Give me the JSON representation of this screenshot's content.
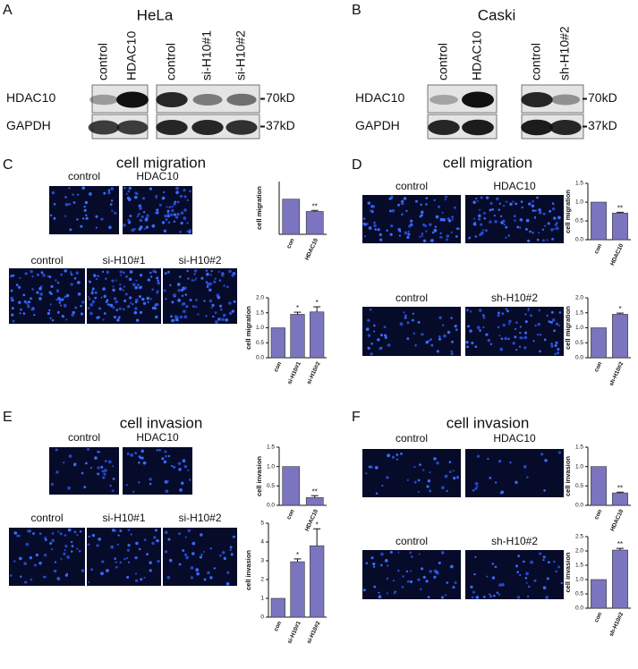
{
  "panels": {
    "A": {
      "label": "A",
      "title": "HeLa",
      "lanes": [
        [
          "control",
          "HDAC10"
        ],
        [
          "control",
          "si-H10#1",
          "si-H10#2"
        ]
      ],
      "rows": [
        "HDAC10",
        "GAPDH"
      ],
      "markers": [
        "70kD",
        "37kD"
      ]
    },
    "B": {
      "label": "B",
      "title": "Caski",
      "lanes": [
        [
          "control",
          "HDAC10"
        ],
        [
          "control",
          "sh-H10#2"
        ]
      ],
      "rows": [
        "HDAC10",
        "GAPDH"
      ],
      "markers": [
        "70kD",
        "37kD"
      ]
    },
    "C": {
      "label": "C",
      "title": "cell migration",
      "images": [
        [
          "control",
          "HDAC10"
        ],
        [
          "control",
          "si-H10#1",
          "si-H10#2"
        ]
      ]
    },
    "D": {
      "label": "D",
      "title": "cell migration",
      "images": [
        [
          "control",
          "HDAC10"
        ],
        [
          "control",
          "sh-H10#2"
        ]
      ]
    },
    "E": {
      "label": "E",
      "title": "cell invasion",
      "images": [
        [
          "control",
          "HDAC10"
        ],
        [
          "control",
          "si-H10#1",
          "si-H10#2"
        ]
      ]
    },
    "F": {
      "label": "F",
      "title": "cell invasion",
      "images": [
        [
          "control",
          "HDAC10"
        ],
        [
          "control",
          "sh-H10#2"
        ]
      ]
    }
  },
  "chart_data": [
    {
      "type": "bar",
      "ylabel": "cell migration",
      "categories": [
        "con",
        "HDAC10"
      ],
      "values": [
        1.0,
        0.65
      ],
      "errors": [
        null,
        0.03
      ],
      "significance": [
        null,
        "**"
      ],
      "color": "#7b74be",
      "ylim": [
        0,
        1.5
      ]
    },
    {
      "type": "bar",
      "ylabel": "cell migration",
      "categories": [
        "con",
        "si-H10#1",
        "si-H10#2"
      ],
      "values": [
        1.0,
        1.45,
        1.53
      ],
      "errors": [
        null,
        0.07,
        0.17
      ],
      "significance": [
        null,
        "*",
        "*"
      ],
      "color": "#7b74be",
      "ylim": [
        0,
        2.0
      ],
      "yticks": [
        {
          "value": 0,
          "label": "0.0"
        },
        {
          "value": 0.5,
          "label": "0.5"
        },
        {
          "value": 1,
          "label": "1.0"
        },
        {
          "value": 1.5,
          "label": "1.5"
        },
        {
          "value": 2,
          "label": "2.0"
        }
      ]
    },
    {
      "type": "bar",
      "ylabel": "cell migration",
      "categories": [
        "con",
        "HDAC10"
      ],
      "values": [
        1.0,
        0.71
      ],
      "errors": [
        null,
        0.02
      ],
      "significance": [
        null,
        "**"
      ],
      "color": "#7b74be",
      "ylim": [
        0,
        1.5
      ],
      "yticks": [
        {
          "value": 0,
          "label": "0.0"
        },
        {
          "value": 0.5,
          "label": "0.5"
        },
        {
          "value": 1,
          "label": "1.0"
        },
        {
          "value": 1.5,
          "label": "1.5"
        }
      ]
    },
    {
      "type": "bar",
      "ylabel": "cell migration",
      "categories": [
        "con",
        "sh-H10#2"
      ],
      "values": [
        1.0,
        1.45
      ],
      "errors": [
        null,
        0.04
      ],
      "significance": [
        null,
        "*"
      ],
      "color": "#7b74be",
      "ylim": [
        0,
        2.0
      ],
      "yticks": [
        {
          "value": 0,
          "label": "0.0"
        },
        {
          "value": 0.5,
          "label": "0.5"
        },
        {
          "value": 1,
          "label": "1.0"
        },
        {
          "value": 1.5,
          "label": "1.5"
        },
        {
          "value": 2,
          "label": "2.0"
        }
      ]
    },
    {
      "type": "bar",
      "ylabel": "cell invasion",
      "categories": [
        "con",
        "HDAC10"
      ],
      "values": [
        1.0,
        0.2
      ],
      "errors": [
        null,
        0.05
      ],
      "significance": [
        null,
        "**"
      ],
      "color": "#7b74be",
      "ylim": [
        0,
        1.5
      ],
      "yticks": [
        {
          "value": 0,
          "label": "0.0"
        },
        {
          "value": 0.5,
          "label": "0.5"
        },
        {
          "value": 1,
          "label": "1.0"
        },
        {
          "value": 1.5,
          "label": "1.5"
        }
      ]
    },
    {
      "type": "bar",
      "ylabel": "cell invasion",
      "categories": [
        "con",
        "si-H10#1",
        "si-H10#2"
      ],
      "values": [
        1.0,
        2.95,
        3.8
      ],
      "errors": [
        null,
        0.15,
        0.9
      ],
      "significance": [
        null,
        "*",
        "*"
      ],
      "color": "#7b74be",
      "ylim": [
        0,
        5
      ],
      "yticks": [
        0,
        1,
        2,
        3,
        4,
        5
      ]
    },
    {
      "type": "bar",
      "ylabel": "cell invasion",
      "categories": [
        "con",
        "HDAC10"
      ],
      "values": [
        1.0,
        0.32
      ],
      "errors": [
        null,
        0.02
      ],
      "significance": [
        null,
        "**"
      ],
      "color": "#7b74be",
      "ylim": [
        0,
        1.5
      ],
      "yticks": [
        {
          "value": 0,
          "label": "0.0"
        },
        {
          "value": 0.5,
          "label": "0.5"
        },
        {
          "value": 1,
          "label": "1.0"
        },
        {
          "value": 1.5,
          "label": "1.5"
        }
      ]
    },
    {
      "type": "bar",
      "ylabel": "cell invasion",
      "categories": [
        "con",
        "sh-H10#2"
      ],
      "values": [
        1.0,
        2.03
      ],
      "errors": [
        null,
        0.06
      ],
      "significance": [
        null,
        "**"
      ],
      "color": "#7b74be",
      "ylim": [
        0,
        2.5
      ],
      "yticks": [
        {
          "value": 0,
          "label": "0.0"
        },
        {
          "value": 0.5,
          "label": "0.5"
        },
        {
          "value": 1,
          "label": "1.0"
        },
        {
          "value": 1.5,
          "label": "1.5"
        },
        {
          "value": 2,
          "label": "2.0"
        },
        {
          "value": 2.5,
          "label": "2.5"
        }
      ]
    }
  ]
}
